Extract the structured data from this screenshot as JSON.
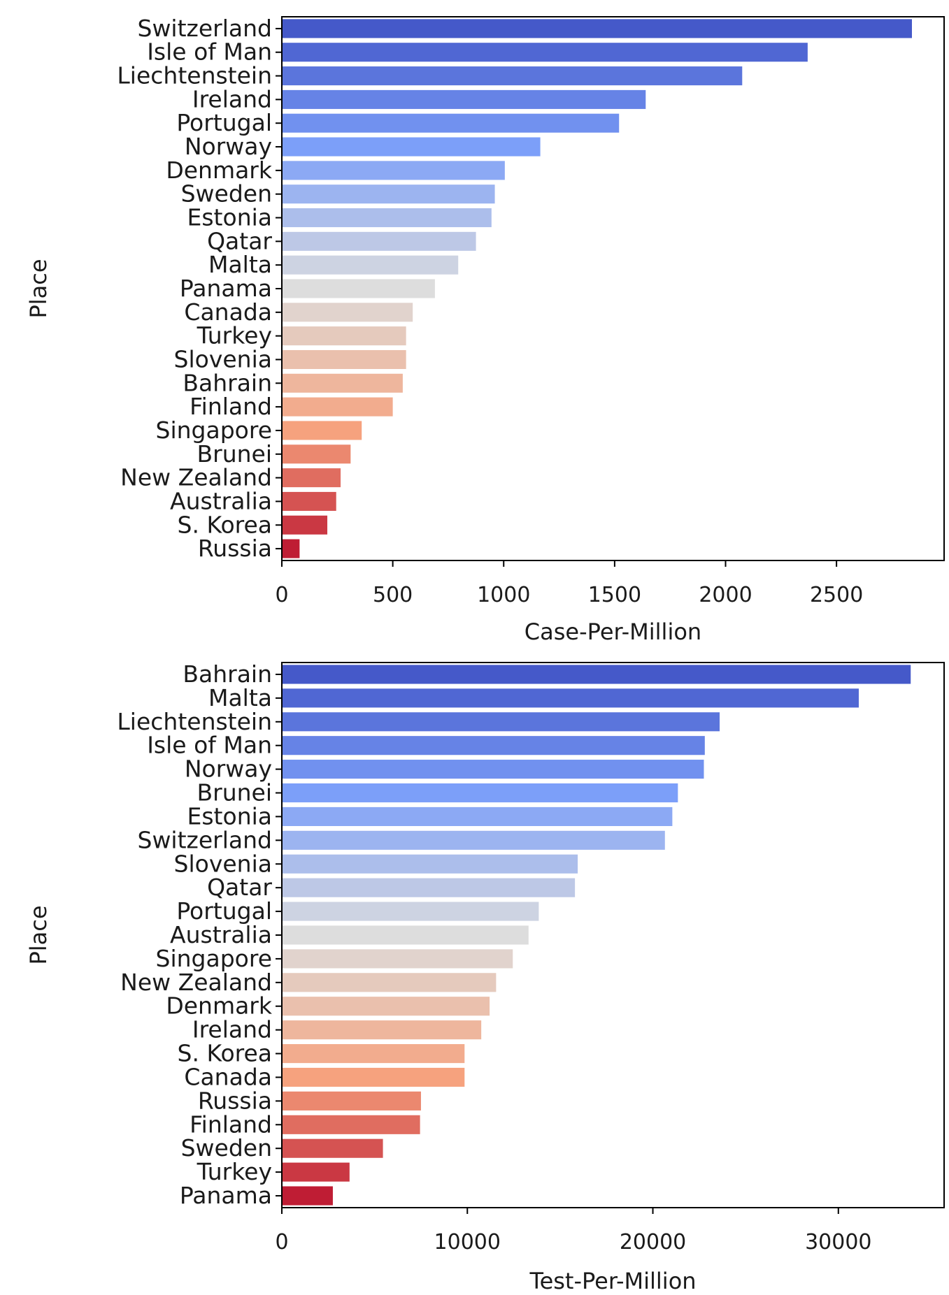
{
  "chart_data": [
    {
      "type": "bar",
      "orientation": "horizontal",
      "categories": [
        "Switzerland",
        "Isle of Man",
        "Liechtenstein",
        "Ireland",
        "Portugal",
        "Norway",
        "Denmark",
        "Sweden",
        "Estonia",
        "Qatar",
        "Malta",
        "Panama",
        "Canada",
        "Turkey",
        "Slovenia",
        "Bahrain",
        "Finland",
        "Singapore",
        "Brunei ",
        "New Zealand",
        "Australia",
        "S. Korea",
        "Russia"
      ],
      "values": [
        2840,
        2370,
        2075,
        1640,
        1520,
        1165,
        1005,
        960,
        945,
        875,
        795,
        690,
        590,
        560,
        560,
        545,
        500,
        360,
        310,
        265,
        245,
        205,
        80
      ],
      "xlabel": "Case-Per-Million",
      "ylabel": "Place",
      "xlim": [
        0,
        2985
      ],
      "xticks": [
        0,
        500,
        1000,
        1500,
        2000,
        2500
      ],
      "colormap": "coolwarm",
      "grid": false
    },
    {
      "type": "bar",
      "orientation": "horizontal",
      "categories": [
        "Bahrain",
        "Malta",
        "Liechtenstein",
        "Isle of Man",
        "Norway",
        "Brunei ",
        "Estonia",
        "Switzerland",
        "Slovenia",
        "Qatar",
        "Portugal",
        "Australia",
        "Singapore",
        "New Zealand",
        "Denmark",
        "Ireland",
        "S. Korea",
        "Canada",
        "Russia",
        "Finland",
        "Sweden",
        "Turkey",
        "Panama"
      ],
      "values": [
        33900,
        31100,
        23600,
        22800,
        22750,
        21350,
        21050,
        20650,
        15950,
        15800,
        13850,
        13300,
        12450,
        11550,
        11200,
        10750,
        9850,
        9850,
        7500,
        7450,
        5450,
        3650,
        2750
      ],
      "xlabel": "Test-Per-Million",
      "ylabel": "Place",
      "xlim": [
        0,
        35700
      ],
      "xticks": [
        0,
        10000,
        20000,
        30000
      ],
      "colormap": "coolwarm",
      "grid": false
    }
  ]
}
